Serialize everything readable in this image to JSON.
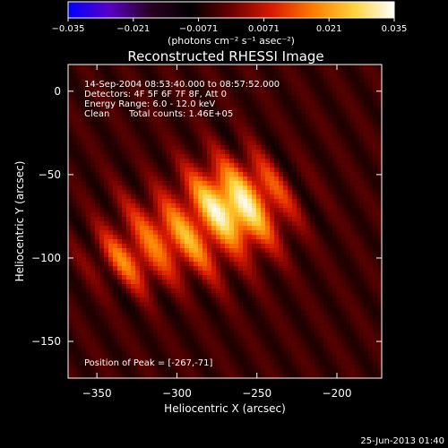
{
  "chart_data": {
    "type": "heatmap",
    "title": "Reconstructed RHESSI Image",
    "xlabel": "Heliocentric X (arcsec)",
    "ylabel": "Heliocentric Y (arcsec)",
    "xlim": [
      -368,
      -172
    ],
    "ylim": [
      -172,
      16
    ],
    "xticks": [
      -350,
      -300,
      -250,
      -200
    ],
    "yticks": [
      0,
      -50,
      -100,
      -150
    ],
    "colorbar": {
      "min": -0.035,
      "max": 0.035,
      "ticks": [
        "−0.035",
        "−0.021",
        "−0.0071",
        "0.0071",
        "0.021",
        "0.035"
      ],
      "unit_label": "(photons cm⁻² s⁻¹ asec⁻²)",
      "colors": [
        "#0000ff",
        "#5a00c8",
        "#2a0020",
        "#000000",
        "#6a0000",
        "#d81a00",
        "#ff7a00",
        "#ffd23a",
        "#ffffff"
      ]
    },
    "annotations": {
      "time_range": "14-Sep-2004 08:53:40.000 to 08:57:52.000",
      "detectors": "Detectors: 4F 5F 6F 7F 8F, Att 0",
      "energy": "Energy Range: 6.0 - 12.0 keV",
      "method": "Clean",
      "counts": "Total counts: 1.46E+05",
      "peak_label": "Position of Peak = [-267,-71]"
    },
    "peak": [
      -267,
      -71
    ],
    "sources": [
      {
        "x": -267,
        "y": -71,
        "sx": 20,
        "sy": 12,
        "rot": -35,
        "amp": 0.035
      },
      {
        "x": -300,
        "y": -88,
        "sx": 22,
        "sy": 12,
        "rot": -30,
        "amp": 0.021
      },
      {
        "x": -330,
        "y": -102,
        "sx": 16,
        "sy": 10,
        "rot": -30,
        "amp": 0.016
      },
      {
        "x": -250,
        "y": -55,
        "sx": 18,
        "sy": 10,
        "rot": -35,
        "amp": 0.014
      }
    ],
    "background_level": -0.004,
    "fringe_amplitude": 0.006
  },
  "footer": {
    "timestamp": "25-Jun-2013 01:40"
  }
}
